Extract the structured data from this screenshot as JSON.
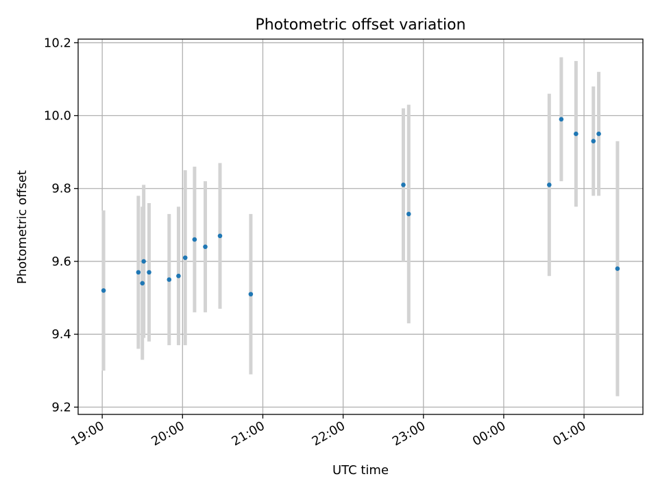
{
  "chart_data": {
    "type": "scatter",
    "title": "Photometric offset variation",
    "xlabel": "UTC time",
    "ylabel": "Photometric offset",
    "x_tick_labels": [
      "19:00",
      "20:00",
      "21:00",
      "22:00",
      "23:00",
      "00:00",
      "01:00"
    ],
    "y_tick_labels": [
      "9.2",
      "9.4",
      "9.6",
      "9.8",
      "10.0",
      "10.2"
    ],
    "ylim": [
      9.18,
      10.21
    ],
    "grid": true,
    "error_bar_color": "#d3d3d3",
    "point_color": "#1f77b4",
    "points": [
      {
        "time": "19:01",
        "y": 9.52,
        "err": 0.22
      },
      {
        "time": "19:27",
        "y": 9.57,
        "err": 0.21
      },
      {
        "time": "19:30",
        "y": 9.54,
        "err": 0.21
      },
      {
        "time": "19:31",
        "y": 9.6,
        "err": 0.21
      },
      {
        "time": "19:35",
        "y": 9.57,
        "err": 0.19
      },
      {
        "time": "19:50",
        "y": 9.55,
        "err": 0.18
      },
      {
        "time": "19:57",
        "y": 9.56,
        "err": 0.19
      },
      {
        "time": "20:02",
        "y": 9.61,
        "err": 0.24
      },
      {
        "time": "20:09",
        "y": 9.66,
        "err": 0.2
      },
      {
        "time": "20:17",
        "y": 9.64,
        "err": 0.18
      },
      {
        "time": "20:28",
        "y": 9.67,
        "err": 0.2
      },
      {
        "time": "20:51",
        "y": 9.51,
        "err": 0.22
      },
      {
        "time": "22:45",
        "y": 9.81,
        "err": 0.21
      },
      {
        "time": "22:49",
        "y": 9.73,
        "err": 0.3
      },
      {
        "time": "00:34",
        "y": 9.81,
        "err": 0.25
      },
      {
        "time": "00:43",
        "y": 9.99,
        "err": 0.17
      },
      {
        "time": "00:54",
        "y": 9.95,
        "err": 0.2
      },
      {
        "time": "01:07",
        "y": 9.93,
        "err": 0.15
      },
      {
        "time": "01:11",
        "y": 9.95,
        "err": 0.17
      },
      {
        "time": "01:25",
        "y": 9.58,
        "err": 0.35
      }
    ]
  }
}
